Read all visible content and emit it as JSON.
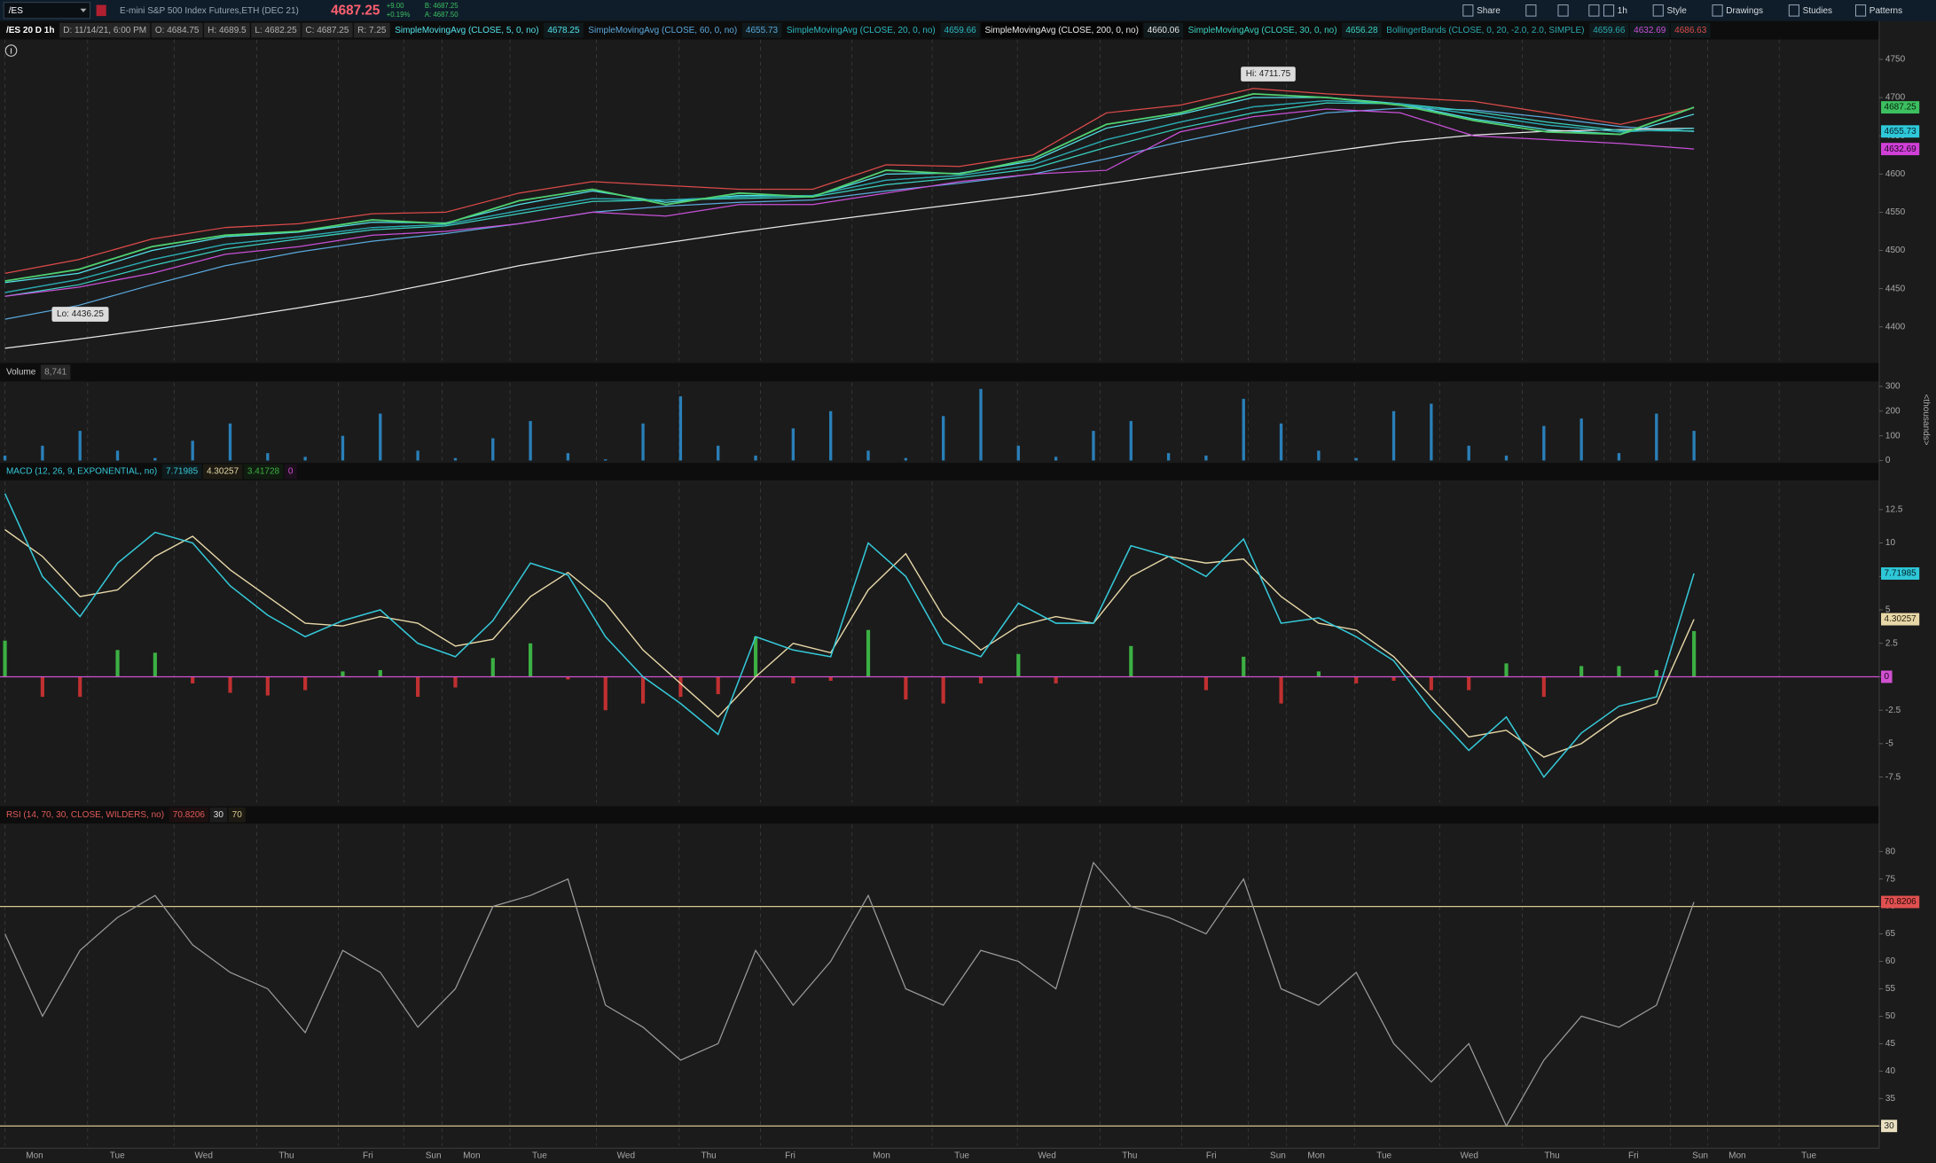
{
  "toolbar": {
    "symbol": "/ES",
    "description": "E-mini S&P 500 Index Futures,ETH (DEC 21)",
    "last": "4687.25",
    "change": "+9.00",
    "change_pct": "+0.19%",
    "bid": "B: 4687.25",
    "ask": "A: 4687.50",
    "buttons": [
      "Share",
      "1h",
      "Style",
      "Drawings",
      "Studies",
      "Patterns"
    ]
  },
  "price": {
    "header": [
      "/ES 20 D 1h",
      "D: 11/14/21, 6:00 PM",
      "O: 4684.75",
      "H: 4689.5",
      "L: 4682.25",
      "C: 4687.25",
      "R: 7.25"
    ],
    "ylim": [
      4356,
      4776
    ],
    "yticks": [
      4400,
      4450,
      4500,
      4550,
      4600,
      4650,
      4700,
      4750
    ],
    "close": {
      "color": "#4fd070",
      "values": [
        4460,
        4475,
        4505,
        4520,
        4525,
        4540,
        4535,
        4565,
        4580,
        4560,
        4575,
        4570,
        4605,
        4600,
        4620,
        4665,
        4680,
        4705,
        4700,
        4690,
        4670,
        4655,
        4652,
        4687.25
      ]
    },
    "studies": [
      {
        "label": "SimpleMovingAvg (CLOSE, 5, 0, no)",
        "lines": [
          {
            "color": "#52e2ea",
            "values": [
              4458,
              4470,
              4500,
              4518,
              4524,
              4537,
              4536,
              4560,
              4578,
              4563,
              4572,
              4571,
              4600,
              4601,
              4617,
              4660,
              4678,
              4700,
              4700,
              4692,
              4672,
              4658,
              4652,
              4678.25
            ]
          }
        ]
      },
      {
        "label": "SimpleMovingAvg (CLOSE, 60, 0, no)",
        "lines": [
          {
            "color": "#5aa8dc",
            "values": [
              4410,
              4428,
              4455,
              4480,
              4498,
              4512,
              4522,
              4535,
              4550,
              4558,
              4563,
              4566,
              4578,
              4588,
              4600,
              4620,
              4642,
              4662,
              4680,
              4686,
              4684,
              4674,
              4662,
              4655.73
            ]
          }
        ]
      },
      {
        "label": "SimpleMovingAvg (CLOSE, 20, 0, no)",
        "lines": [
          {
            "color": "#2bb8c0",
            "values": [
              4445,
              4462,
              4488,
              4508,
              4518,
              4530,
              4534,
              4552,
              4568,
              4566,
              4570,
              4572,
              4592,
              4598,
              4612,
              4645,
              4668,
              4688,
              4696,
              4692,
              4678,
              4664,
              4655,
              4659.66
            ]
          }
        ]
      },
      {
        "label": "SimpleMovingAvg (CLOSE, 200, 0, no)",
        "lines": [
          {
            "color": "#e8e8e8",
            "values": [
              4372,
              4384,
              4397,
              4410,
              4425,
              4441,
              4460,
              4480,
              4496,
              4510,
              4524,
              4537,
              4549,
              4561,
              4573,
              4587,
              4601,
              4615,
              4629,
              4642,
              4651,
              4656,
              4658,
              4660.06
            ]
          }
        ]
      },
      {
        "label": "SimpleMovingAvg (CLOSE, 30, 0, no)",
        "lines": [
          {
            "color": "#3ad0c0",
            "values": [
              4440,
              4455,
              4480,
              4502,
              4515,
              4527,
              4532,
              4548,
              4564,
              4566,
              4568,
              4570,
              4586,
              4595,
              4607,
              4635,
              4660,
              4680,
              4693,
              4692,
              4682,
              4668,
              4657,
              4656.28
            ]
          }
        ]
      },
      {
        "label": "BollingerBands (CLOSE, 0, 20, -2.0, 2.0, SIMPLE)",
        "lines": [
          {
            "color": "#2aa8b0",
            "values": [
              4445,
              4462,
              4488,
              4508,
              4518,
              4530,
              4534,
              4552,
              4568,
              4566,
              4570,
              4572,
              4592,
              4598,
              4612,
              4645,
              4668,
              4688,
              4696,
              4692,
              4678,
              4664,
              4655,
              4659.66
            ]
          },
          {
            "color": "#c850d8",
            "values": [
              4440,
              4452,
              4470,
              4495,
              4505,
              4520,
              4525,
              4535,
              4550,
              4545,
              4560,
              4560,
              4575,
              4590,
              4600,
              4605,
              4655,
              4675,
              4685,
              4680,
              4650,
              4645,
              4640,
              4632.69
            ]
          },
          {
            "color": "#dc4a4a",
            "values": [
              4470,
              4488,
              4515,
              4530,
              4535,
              4548,
              4550,
              4575,
              4590,
              4585,
              4580,
              4580,
              4612,
              4610,
              4625,
              4680,
              4690,
              4712,
              4705,
              4700,
              4695,
              4680,
              4665,
              4686.63
            ]
          }
        ]
      }
    ],
    "hi": "Hi: 4711.75",
    "lo": "Lo: 4436.25"
  },
  "volume": {
    "title": "Volume",
    "current": "8,741",
    "unit": "<thousands>",
    "ylim": [
      0,
      315
    ],
    "yticks": [
      0,
      100,
      200,
      300
    ],
    "color": "#2a7fb8",
    "values": [
      20,
      60,
      120,
      40,
      10,
      80,
      150,
      30,
      15,
      100,
      190,
      40,
      10,
      90,
      160,
      30,
      5,
      150,
      260,
      60,
      20,
      130,
      200,
      40,
      10,
      180,
      290,
      60,
      15,
      120,
      160,
      30,
      20,
      250,
      150,
      40,
      10,
      200,
      230,
      60,
      20,
      140,
      170,
      30,
      190,
      120
    ]
  },
  "macd": {
    "title": "MACD (12, 26, 9, EXPONENTIAL, no)",
    "ylim": [
      -9.4,
      14.6
    ],
    "yticks": [
      -7.5,
      -5,
      -2.5,
      0,
      2.5,
      5,
      7.5,
      10,
      12.5
    ],
    "value": {
      "color": "#35c8d8",
      "values": [
        13.7,
        7.5,
        4.5,
        8.5,
        10.8,
        10,
        6.8,
        4.6,
        3,
        4.2,
        5,
        2.5,
        1.5,
        4.2,
        8.5,
        7.6,
        3,
        0,
        -2,
        -4.3,
        3,
        2,
        1.5,
        10,
        7.5,
        2.5,
        1.5,
        5.5,
        4,
        4,
        9.8,
        9,
        7.5,
        10.3,
        4,
        4.4,
        3,
        1.2,
        -2.5,
        -5.5,
        -3,
        -7.5,
        -4.2,
        -2.2,
        -1.5,
        7.71985
      ]
    },
    "avg": {
      "color": "#e8d8a8",
      "values": [
        11,
        9,
        6,
        6.5,
        9,
        10.5,
        8,
        6,
        4,
        3.8,
        4.5,
        4,
        2.3,
        2.8,
        6,
        7.8,
        5.5,
        2,
        -0.5,
        -3,
        0,
        2.5,
        1.8,
        6.5,
        9.2,
        4.5,
        2,
        3.8,
        4.5,
        4,
        7.5,
        9,
        8.5,
        8.8,
        6,
        4,
        3.5,
        1.5,
        -1.5,
        -4.5,
        -4,
        -6,
        -5,
        -3,
        -2,
        4.30257
      ]
    },
    "diff": {
      "up_color": "#3cb043",
      "down_color": "#c03030",
      "values": [
        2.7,
        -1.5,
        -1.5,
        2,
        1.8,
        -0.5,
        -1.2,
        -1.4,
        -1,
        0.4,
        0.5,
        -1.5,
        -0.8,
        1.4,
        2.5,
        -0.2,
        -2.5,
        -2,
        -1.5,
        -1.3,
        3,
        -0.5,
        -0.3,
        3.5,
        -1.7,
        -2,
        -0.5,
        1.7,
        -0.5,
        0,
        2.3,
        0,
        -1,
        1.5,
        -2,
        0.4,
        -0.5,
        -0.3,
        -1,
        -1,
        1,
        -1.5,
        0.8,
        0.8,
        0.5,
        3.41728
      ]
    },
    "zero": {
      "color": "#d050d0",
      "value": 0
    }
  },
  "rsi": {
    "title": "RSI (14, 70, 30, CLOSE, WILDERS, no)",
    "ylim": [
      26.4,
      84.9
    ],
    "yticks": [
      30,
      35,
      40,
      45,
      50,
      55,
      60,
      65,
      70,
      75,
      80
    ],
    "color": "#9a9a9a",
    "values": [
      65,
      50,
      62,
      68,
      72,
      63,
      58,
      55,
      47,
      62,
      58,
      48,
      55,
      70,
      72,
      75,
      52,
      48,
      42,
      45,
      62,
      52,
      60,
      72,
      55,
      52,
      62,
      60,
      55,
      78,
      70,
      68,
      65,
      75,
      55,
      52,
      58,
      45,
      38,
      45,
      30,
      42,
      50,
      48,
      52,
      70.8206
    ],
    "oversold": 30,
    "overbought": 70,
    "level_color": "#d8c890"
  },
  "x_axis": [
    "Mon",
    "Tue",
    "Wed",
    "Thu",
    "Fri",
    "Sun",
    "Mon",
    "Tue",
    "Wed",
    "Thu",
    "Fri",
    "Mon",
    "Tue",
    "Wed",
    "Thu",
    "Fri",
    "Sun",
    "Mon",
    "Tue",
    "Wed",
    "Thu",
    "Fri",
    "Sun",
    "Mon",
    "Tue"
  ]
}
